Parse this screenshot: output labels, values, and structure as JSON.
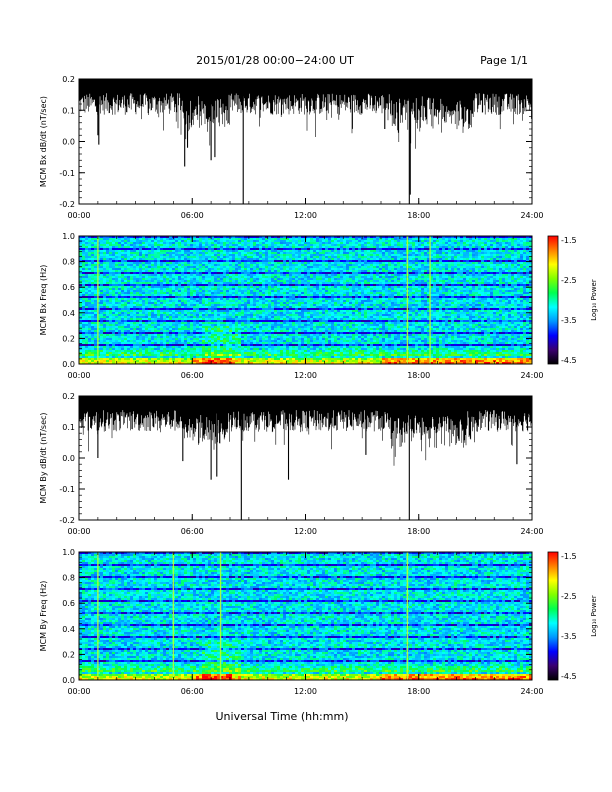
{
  "header": {
    "title": "2015/01/28  00:00−24:00 UT",
    "page": "Page 1/1"
  },
  "xaxis": {
    "label": "Universal Time (hh:mm)",
    "ticks": [
      "00:00",
      "06:00",
      "12:00",
      "18:00",
      "24:00"
    ],
    "range_hours": [
      0,
      24
    ]
  },
  "colorbar": {
    "label": "Log₁₀ Power",
    "ticks": [
      "-1.5",
      "-2.5",
      "-3.5",
      "-4.5"
    ],
    "range": [
      -4.5,
      -1.5
    ],
    "colors": [
      "#000000",
      "#3a0070",
      "#0000ff",
      "#0096ff",
      "#00ffff",
      "#00ff50",
      "#80ff00",
      "#ffff00",
      "#ff8000",
      "#ff0000"
    ]
  },
  "chart_data": [
    {
      "type": "line",
      "ylabel": "MCM Bx dB/dt (nT/sec)",
      "ylim": [
        -0.2,
        0.2
      ],
      "yticks": [
        "0.2",
        "0.1",
        "0.0",
        "-0.1",
        "-0.2"
      ],
      "x_unit": "hours UT",
      "baseline": 0.12,
      "spikes": [
        {
          "x": 1.0,
          "y": 0.02
        },
        {
          "x": 1.05,
          "y": -0.01
        },
        {
          "x": 5.6,
          "y": -0.08
        },
        {
          "x": 5.75,
          "y": -0.02
        },
        {
          "x": 7.0,
          "y": -0.06
        },
        {
          "x": 7.2,
          "y": -0.05
        },
        {
          "x": 8.7,
          "y": -0.2
        },
        {
          "x": 16.2,
          "y": 0.04
        },
        {
          "x": 17.5,
          "y": -0.2
        },
        {
          "x": 17.55,
          "y": -0.17
        }
      ]
    },
    {
      "type": "heatmap",
      "ylabel": "MCM Bx Freq (Hz)",
      "ylim": [
        0,
        1.0
      ],
      "yticks": [
        "1.0",
        "0.8",
        "0.6",
        "0.4",
        "0.2",
        "0.0"
      ],
      "zlim": [
        -4.5,
        -1.5
      ],
      "bright_lines_hours": [
        1.0,
        17.4,
        18.6
      ]
    },
    {
      "type": "line",
      "ylabel": "MCM By dB/dt (nT/sec)",
      "ylim": [
        -0.2,
        0.2
      ],
      "yticks": [
        "0.2",
        "0.1",
        "0.0",
        "-0.1",
        "-0.2"
      ],
      "x_unit": "hours UT",
      "baseline": 0.12,
      "spikes": [
        {
          "x": 1.0,
          "y": 0.0
        },
        {
          "x": 5.5,
          "y": -0.01
        },
        {
          "x": 7.0,
          "y": -0.07
        },
        {
          "x": 7.3,
          "y": -0.06
        },
        {
          "x": 8.6,
          "y": -0.2
        },
        {
          "x": 11.1,
          "y": -0.07
        },
        {
          "x": 15.2,
          "y": 0.01
        },
        {
          "x": 17.5,
          "y": -0.2
        },
        {
          "x": 23.2,
          "y": -0.02
        }
      ]
    },
    {
      "type": "heatmap",
      "ylabel": "MCM By Freq (Hz)",
      "ylim": [
        0,
        1.0
      ],
      "yticks": [
        "1.0",
        "0.8",
        "0.6",
        "0.4",
        "0.2",
        "0.0"
      ],
      "zlim": [
        -4.5,
        -1.5
      ],
      "bright_lines_hours": [
        1.0,
        5.0,
        7.5,
        17.4
      ]
    }
  ]
}
